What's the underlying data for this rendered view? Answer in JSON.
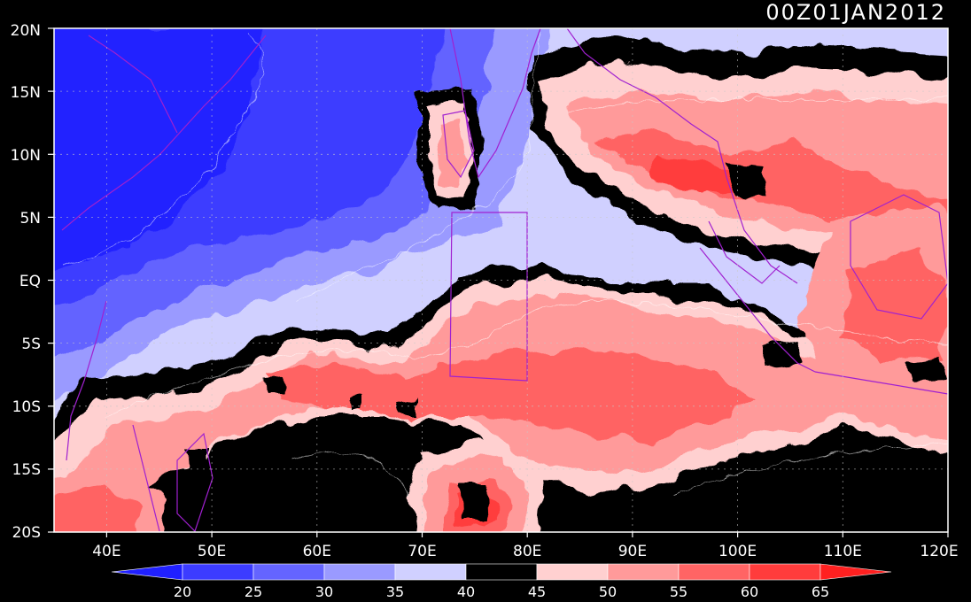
{
  "title": "00Z01JAN2012",
  "map": {
    "lon_labels": [
      "40E",
      "50E",
      "60E",
      "70E",
      "80E",
      "90E",
      "100E",
      "110E",
      "120E"
    ],
    "lat_labels": [
      "20N",
      "15N",
      "10N",
      "5N",
      "EQ",
      "5S",
      "10S",
      "15S",
      "20S"
    ],
    "extent": {
      "lon": [
        35,
        120
      ],
      "lat": [
        -20,
        20
      ]
    },
    "grid": "dotted"
  },
  "colorbar": {
    "tick_labels": [
      "20",
      "25",
      "30",
      "35",
      "40",
      "45",
      "50",
      "55",
      "60",
      "65"
    ],
    "colors": [
      "#2020ff",
      "#3c3cff",
      "#6464ff",
      "#9a9aff",
      "#d0d0ff",
      "#000000",
      "#ffd0d0",
      "#ff9a9a",
      "#ff6464",
      "#ff3c3c",
      "#ff2020"
    ],
    "colors_note": "under-20 arrow, 20-25, 25-30, 30-35, 35-40, 40-45, 45-50, 50-55, 55-60, 60-65, over-65 arrow"
  },
  "colors": {
    "coastline": "#a020d0",
    "contour": "#ffffff",
    "frame": "#ffffff"
  }
}
